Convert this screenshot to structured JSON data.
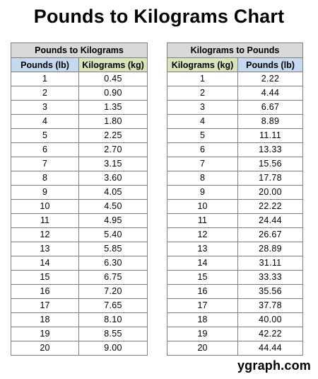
{
  "title": "Pounds to Kilograms Chart",
  "lb_to_kg": {
    "caption": "Pounds to Kilograms",
    "col1_header": "Pounds (lb)",
    "col2_header": "Kilograms (kg)",
    "rows": [
      [
        "1",
        "0.45"
      ],
      [
        "2",
        "0.90"
      ],
      [
        "3",
        "1.35"
      ],
      [
        "4",
        "1.80"
      ],
      [
        "5",
        "2.25"
      ],
      [
        "6",
        "2.70"
      ],
      [
        "7",
        "3.15"
      ],
      [
        "8",
        "3.60"
      ],
      [
        "9",
        "4.05"
      ],
      [
        "10",
        "4.50"
      ],
      [
        "11",
        "4.95"
      ],
      [
        "12",
        "5.40"
      ],
      [
        "13",
        "5.85"
      ],
      [
        "14",
        "6.30"
      ],
      [
        "15",
        "6.75"
      ],
      [
        "16",
        "7.20"
      ],
      [
        "17",
        "7.65"
      ],
      [
        "18",
        "8.10"
      ],
      [
        "19",
        "8.55"
      ],
      [
        "20",
        "9.00"
      ]
    ]
  },
  "kg_to_lb": {
    "caption": "Kilograms to Pounds",
    "col1_header": "Kilograms (kg)",
    "col2_header": "Pounds (lb)",
    "rows": [
      [
        "1",
        "2.22"
      ],
      [
        "2",
        "4.44"
      ],
      [
        "3",
        "6.67"
      ],
      [
        "4",
        "8.89"
      ],
      [
        "5",
        "11.11"
      ],
      [
        "6",
        "13.33"
      ],
      [
        "7",
        "15.56"
      ],
      [
        "8",
        "17.78"
      ],
      [
        "9",
        "20.00"
      ],
      [
        "10",
        "22.22"
      ],
      [
        "11",
        "24.44"
      ],
      [
        "12",
        "26.67"
      ],
      [
        "13",
        "28.89"
      ],
      [
        "14",
        "31.11"
      ],
      [
        "15",
        "33.33"
      ],
      [
        "16",
        "35.56"
      ],
      [
        "17",
        "37.78"
      ],
      [
        "18",
        "40.00"
      ],
      [
        "19",
        "42.22"
      ],
      [
        "20",
        "44.44"
      ]
    ]
  },
  "brand": "ygraph.com",
  "colors": {
    "pounds_header": "#c6d9f1",
    "kilograms_header": "#d8e4bc",
    "caption_bg": "#d9d9d9",
    "border": "#7f7f7f"
  }
}
